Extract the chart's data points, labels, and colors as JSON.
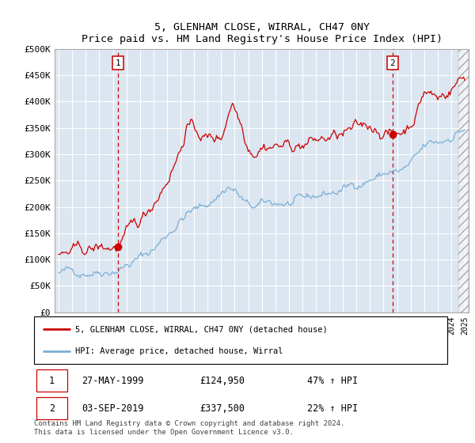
{
  "title": "5, GLENHAM CLOSE, WIRRAL, CH47 0NY",
  "subtitle": "Price paid vs. HM Land Registry's House Price Index (HPI)",
  "ylim": [
    0,
    500000
  ],
  "yticks": [
    0,
    50000,
    100000,
    150000,
    200000,
    250000,
    300000,
    350000,
    400000,
    450000,
    500000
  ],
  "ytick_labels": [
    "£0",
    "£50K",
    "£100K",
    "£150K",
    "£200K",
    "£250K",
    "£300K",
    "£350K",
    "£400K",
    "£450K",
    "£500K"
  ],
  "background_color": "#dce6f1",
  "grid_color": "#ffffff",
  "line1_color": "#cc0000",
  "line2_color": "#7bafd4",
  "sale1_x": 1999.38,
  "sale1_y": 124950,
  "sale2_x": 2019.67,
  "sale2_y": 337500,
  "legend_label1": "5, GLENHAM CLOSE, WIRRAL, CH47 0NY (detached house)",
  "legend_label2": "HPI: Average price, detached house, Wirral",
  "table_row1": [
    "1",
    "27-MAY-1999",
    "£124,950",
    "47% ↑ HPI"
  ],
  "table_row2": [
    "2",
    "03-SEP-2019",
    "£337,500",
    "22% ↑ HPI"
  ],
  "footer": "Contains HM Land Registry data © Crown copyright and database right 2024.\nThis data is licensed under the Open Government Licence v3.0.",
  "future_start_x": 2024.5,
  "xmin": 1994.7,
  "xmax": 2025.3
}
